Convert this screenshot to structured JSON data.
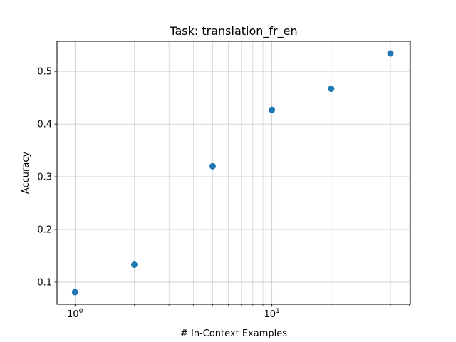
{
  "chart_data": {
    "type": "scatter",
    "title": "Task: translation_fr_en",
    "xlabel": "# In-Context Examples",
    "ylabel": "Accuracy",
    "x_scale": "log",
    "x_tick_labels": [
      {
        "value": 1,
        "base": "10",
        "exp": "0"
      },
      {
        "value": 10,
        "base": "10",
        "exp": "1"
      }
    ],
    "y_tick_labels": [
      "0.1",
      "0.2",
      "0.3",
      "0.4",
      "0.5"
    ],
    "y_ticks": [
      0.1,
      0.2,
      0.3,
      0.4,
      0.5
    ],
    "xlim": [
      0.81,
      50.5
    ],
    "ylim": [
      0.058,
      0.557
    ],
    "grid": true,
    "marker_color": "#1f77b4",
    "series": [
      {
        "x": [
          1,
          2,
          5,
          10,
          20,
          40
        ],
        "y": [
          0.081,
          0.133,
          0.32,
          0.427,
          0.467,
          0.534
        ]
      }
    ]
  }
}
